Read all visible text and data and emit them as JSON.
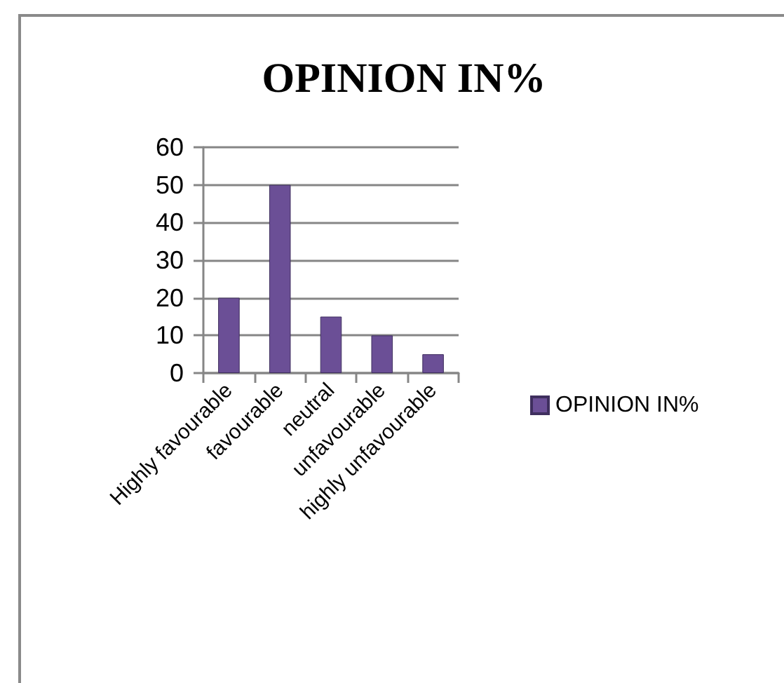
{
  "chart_data": {
    "type": "bar",
    "title": "OPINION IN%",
    "categories": [
      "Highly favourable",
      "favourable",
      "neutral",
      "unfavourable",
      "highly unfavourable"
    ],
    "series": [
      {
        "name": "OPINION IN%",
        "color": "#6b4f96",
        "values": [
          20,
          50,
          15,
          10,
          5
        ]
      }
    ],
    "ylim": [
      0,
      60
    ],
    "yticks": [
      0,
      10,
      20,
      30,
      40,
      50,
      60
    ],
    "grid": "y",
    "legend": "right"
  }
}
